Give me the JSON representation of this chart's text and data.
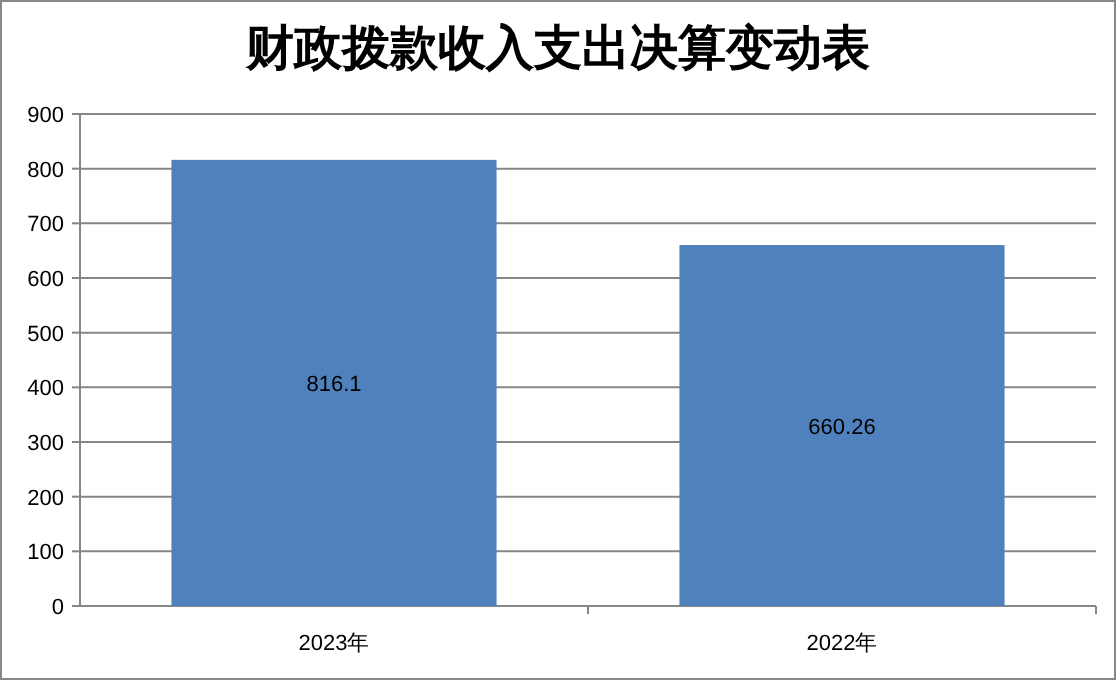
{
  "chart_data": {
    "type": "bar",
    "title": "财政拨款收入支出决算变动表",
    "categories": [
      "2023年",
      "2022年"
    ],
    "values": [
      816.1,
      660.26
    ],
    "color": "#4f81bd",
    "ylim": [
      0,
      900
    ],
    "yticks": [
      0,
      100,
      200,
      300,
      400,
      500,
      600,
      700,
      800,
      900
    ],
    "grid": "y",
    "data_labels": true
  }
}
